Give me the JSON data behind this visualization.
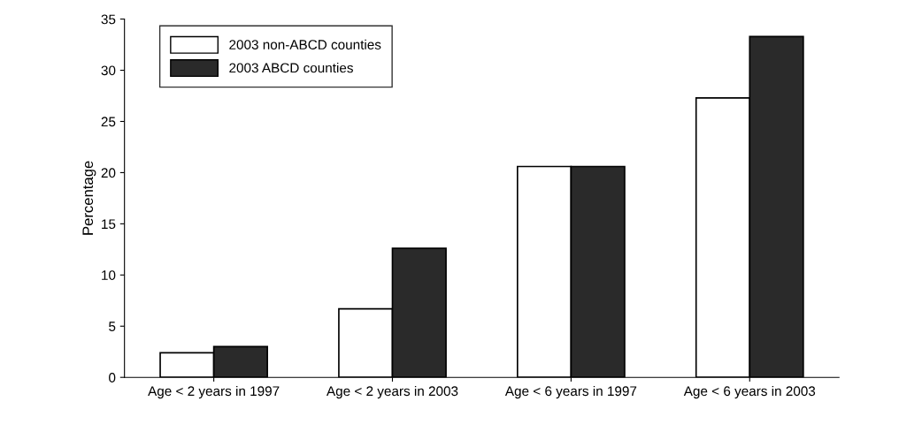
{
  "chart_data": {
    "type": "bar",
    "ylabel": "Percentage",
    "categories": [
      "Age < 2 years in 1997",
      "Age < 2 years in 2003",
      "Age < 6 years in 1997",
      "Age < 6 years in 2003"
    ],
    "series": [
      {
        "name": "2003 non-ABCD counties",
        "color": "#ffffff",
        "values": [
          2.4,
          6.7,
          20.6,
          27.3
        ]
      },
      {
        "name": "2003 ABCD counties",
        "color": "#2a2a2a",
        "values": [
          3.0,
          12.6,
          20.6,
          33.3
        ]
      }
    ],
    "ylim": [
      0,
      35
    ],
    "yticks": [
      0,
      5,
      10,
      15,
      20,
      25,
      30,
      35
    ],
    "grid": false,
    "legend": "top left"
  }
}
